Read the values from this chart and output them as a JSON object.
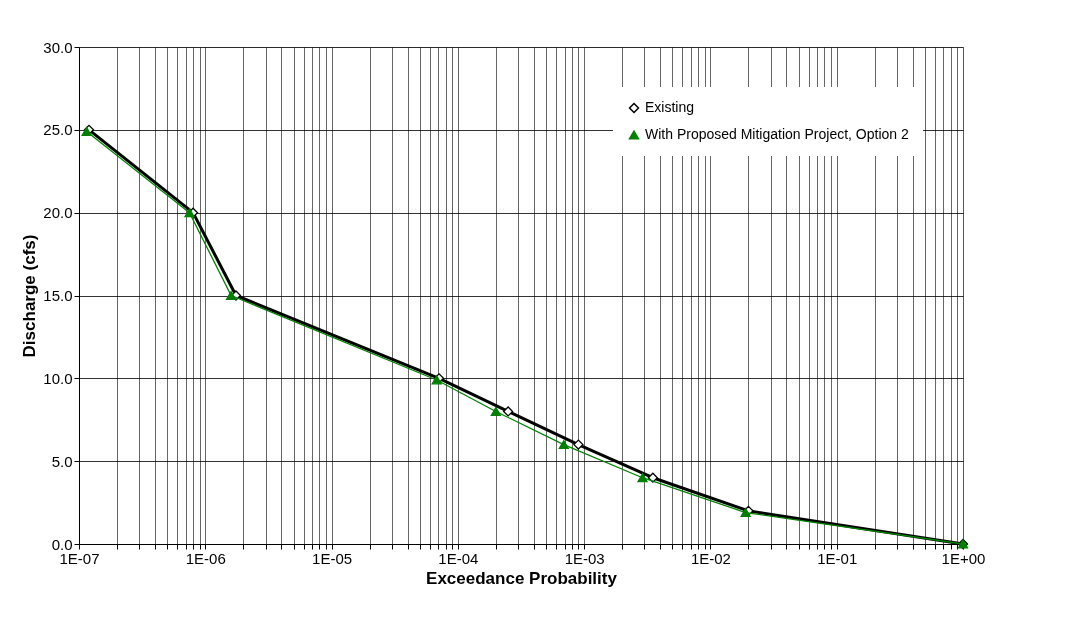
{
  "chart_data": {
    "type": "line",
    "xlabel": "Exceedance Probability",
    "ylabel": "Discharge (cfs)",
    "log": "x",
    "grid": true,
    "legend": "top right",
    "line_style": "solid",
    "xlim": [
      1e-07,
      1
    ],
    "ylim": [
      0,
      30
    ],
    "xticks": [
      {
        "value": 1e-07,
        "label": "1E-07"
      },
      {
        "value": 2e-07,
        "label": null
      },
      {
        "value": 3e-07,
        "label": null
      },
      {
        "value": 4e-07,
        "label": null
      },
      {
        "value": 5e-07,
        "label": null
      },
      {
        "value": 6e-07,
        "label": null
      },
      {
        "value": 7e-07,
        "label": null
      },
      {
        "value": 8e-07,
        "label": null
      },
      {
        "value": 9e-07,
        "label": null
      },
      {
        "value": 1e-06,
        "label": "1E-06"
      },
      {
        "value": 2e-06,
        "label": null
      },
      {
        "value": 3e-06,
        "label": null
      },
      {
        "value": 4e-06,
        "label": null
      },
      {
        "value": 5e-06,
        "label": null
      },
      {
        "value": 6e-06,
        "label": null
      },
      {
        "value": 7e-06,
        "label": null
      },
      {
        "value": 8e-06,
        "label": null
      },
      {
        "value": 9e-06,
        "label": null
      },
      {
        "value": 1e-05,
        "label": "1E-05"
      },
      {
        "value": 2e-05,
        "label": null
      },
      {
        "value": 3e-05,
        "label": null
      },
      {
        "value": 4e-05,
        "label": null
      },
      {
        "value": 5e-05,
        "label": null
      },
      {
        "value": 6e-05,
        "label": null
      },
      {
        "value": 7e-05,
        "label": null
      },
      {
        "value": 8e-05,
        "label": null
      },
      {
        "value": 9e-05,
        "label": null
      },
      {
        "value": 0.0001,
        "label": "1E-04"
      },
      {
        "value": 0.0002,
        "label": null
      },
      {
        "value": 0.0003,
        "label": null
      },
      {
        "value": 0.0004,
        "label": null
      },
      {
        "value": 0.0005,
        "label": null
      },
      {
        "value": 0.0006,
        "label": null
      },
      {
        "value": 0.0007,
        "label": null
      },
      {
        "value": 0.0008,
        "label": null
      },
      {
        "value": 0.0009,
        "label": null
      },
      {
        "value": 0.001,
        "label": "1E-03"
      },
      {
        "value": 0.002,
        "label": null
      },
      {
        "value": 0.003,
        "label": null
      },
      {
        "value": 0.004,
        "label": null
      },
      {
        "value": 0.005,
        "label": null
      },
      {
        "value": 0.006,
        "label": null
      },
      {
        "value": 0.007,
        "label": null
      },
      {
        "value": 0.008,
        "label": null
      },
      {
        "value": 0.009,
        "label": null
      },
      {
        "value": 0.01,
        "label": "1E-02"
      },
      {
        "value": 0.02,
        "label": null
      },
      {
        "value": 0.03,
        "label": null
      },
      {
        "value": 0.04,
        "label": null
      },
      {
        "value": 0.05,
        "label": null
      },
      {
        "value": 0.06,
        "label": null
      },
      {
        "value": 0.07,
        "label": null
      },
      {
        "value": 0.08,
        "label": null
      },
      {
        "value": 0.09,
        "label": null
      },
      {
        "value": 0.1,
        "label": "1E-01"
      },
      {
        "value": 0.2,
        "label": null
      },
      {
        "value": 0.3,
        "label": null
      },
      {
        "value": 0.4,
        "label": null
      },
      {
        "value": 0.5,
        "label": null
      },
      {
        "value": 0.6,
        "label": null
      },
      {
        "value": 0.7,
        "label": null
      },
      {
        "value": 0.8,
        "label": null
      },
      {
        "value": 0.9,
        "label": null
      },
      {
        "value": 1,
        "label": "1E+00"
      }
    ],
    "yticks": [
      {
        "value": 0,
        "label": "0.0"
      },
      {
        "value": 5,
        "label": "5.0"
      },
      {
        "value": 10,
        "label": "10.0"
      },
      {
        "value": 15,
        "label": "15.0"
      },
      {
        "value": 20,
        "label": "20.0"
      },
      {
        "value": 25,
        "label": "25.0"
      },
      {
        "value": 30,
        "label": "30.0"
      }
    ],
    "series": [
      {
        "name": "Existing",
        "color": "#000000",
        "marker": "diamond",
        "x": [
          1.2e-07,
          8e-07,
          1.75e-06,
          7.1e-05,
          0.00025,
          0.0009,
          0.0035,
          0.02,
          1
        ],
        "values": [
          25,
          20,
          15,
          10,
          8,
          6,
          4,
          2,
          0
        ]
      },
      {
        "name": "With Proposed Mitigation Project, Option 2",
        "color": "#008000",
        "marker": "triangle",
        "x": [
          1.15e-07,
          7.5e-07,
          1.6e-06,
          6.8e-05,
          0.0002,
          0.00069,
          0.0029,
          0.019,
          1
        ],
        "values": [
          24.9,
          20,
          15,
          9.9,
          8,
          6,
          4,
          1.9,
          0
        ]
      }
    ]
  }
}
